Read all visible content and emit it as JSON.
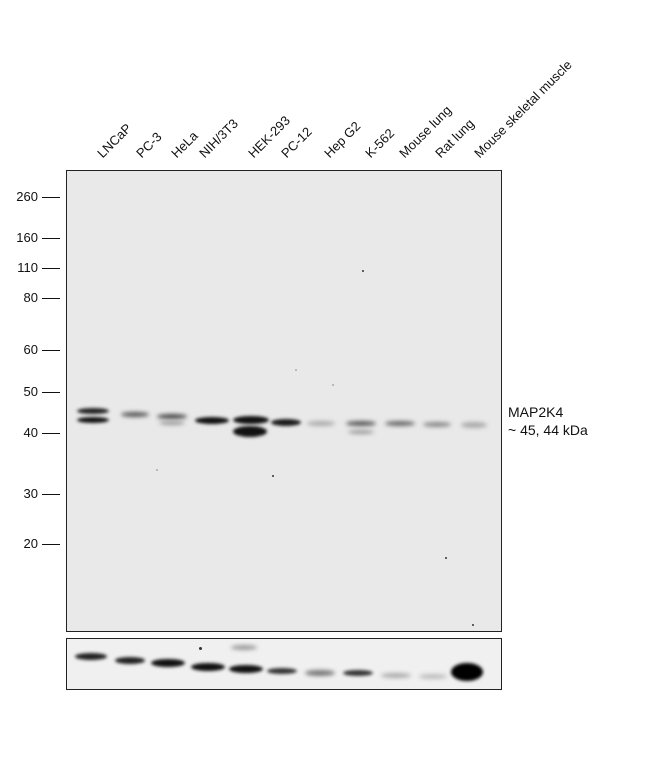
{
  "lanes": [
    "LNCaP",
    "PC-3",
    "HeLa",
    "NIH/3T3",
    "HEK-293",
    "PC-12",
    "Hep G2",
    "K-562",
    "Mouse lung",
    "Rat lung",
    "Mouse skeletal muscle"
  ],
  "mw_markers": [
    "260",
    "160",
    "110",
    "80",
    "60",
    "50",
    "40",
    "30",
    "20"
  ],
  "target_annotation": {
    "name": "MAP2K4",
    "size": "~ 45, 44 kDa"
  },
  "colors": {
    "background": "#ffffff",
    "membrane_main": "#e9e9e9",
    "membrane_loading": "#f0f0f0",
    "band": "#111111"
  }
}
